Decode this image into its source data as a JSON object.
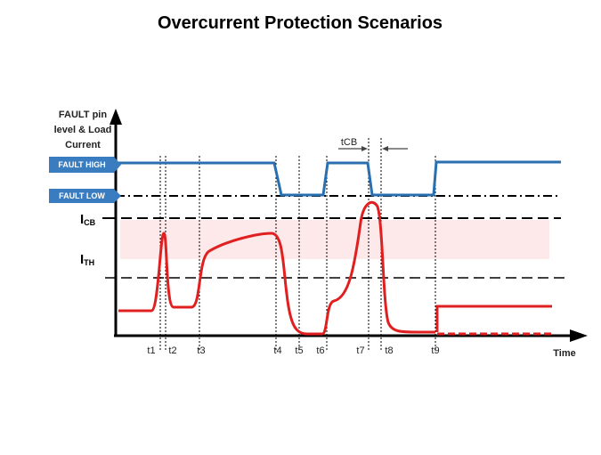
{
  "title": "Overcurrent Protection Scenarios",
  "y_axis_label": [
    "FAULT pin",
    "level & Load",
    "Current"
  ],
  "fault_high": "FAULT HIGH",
  "fault_low": "FAULT LOW",
  "icb": {
    "main": "I",
    "sub": "CB"
  },
  "ith": {
    "main": "I",
    "sub": "TH"
  },
  "tcb": "tCB",
  "times": [
    "t1",
    "t2",
    "t3",
    "t4",
    "t5",
    "t6",
    "t7",
    "t8",
    "t9"
  ],
  "x_axis_label": "Time"
}
